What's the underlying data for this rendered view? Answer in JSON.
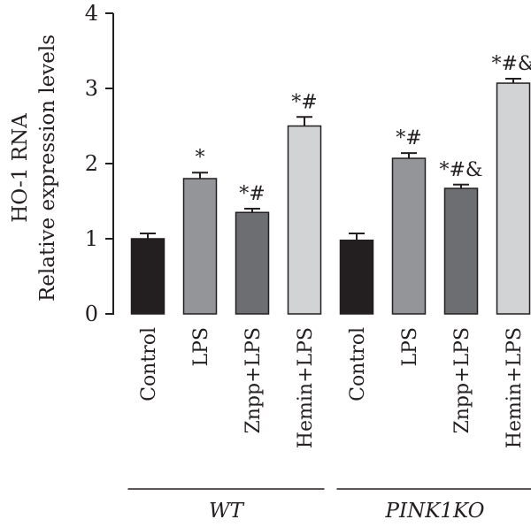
{
  "chart_data": {
    "type": "bar",
    "ylabel_lines": [
      "HO-1 RNA",
      "Relative expression levels"
    ],
    "ylim": [
      0,
      4
    ],
    "yticks": [
      "0",
      "1",
      "2",
      "3",
      "4"
    ],
    "categories": [
      "Control",
      "LPS",
      "Znpp+LPS",
      "Hemin+LPS",
      "Control",
      "LPS",
      "Znpp+LPS",
      "Hemin+LPS"
    ],
    "values": [
      1.0,
      1.8,
      1.35,
      2.5,
      0.98,
      2.07,
      1.67,
      3.07
    ],
    "errors": [
      0.07,
      0.08,
      0.05,
      0.12,
      0.09,
      0.07,
      0.05,
      0.06
    ],
    "significance": [
      "",
      "*",
      "*#",
      "*#",
      "",
      "*#",
      "*#&",
      "*#&"
    ],
    "bar_colors": [
      "#231f20",
      "#939598",
      "#6d6e71",
      "#d1d3d4",
      "#231f20",
      "#939598",
      "#6d6e71",
      "#d1d3d4"
    ],
    "groups": [
      {
        "label": "WT",
        "members": [
          0,
          1,
          2,
          3
        ]
      },
      {
        "label": "PINK1KO",
        "members": [
          4,
          5,
          6,
          7
        ]
      }
    ],
    "legend": false,
    "grid": false
  }
}
